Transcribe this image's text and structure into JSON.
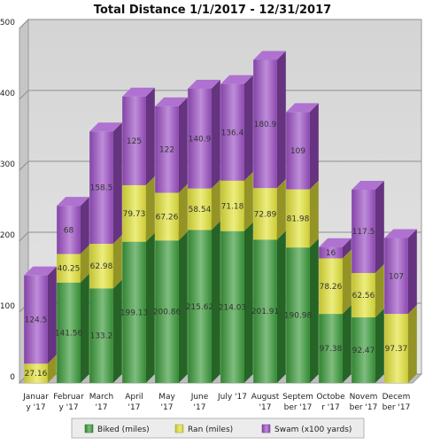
{
  "chart_data": {
    "type": "bar",
    "stacked": true,
    "title": "Total Distance 1/1/2017 - 12/31/2017",
    "categories": [
      [
        "Januar",
        "y '17"
      ],
      [
        "Februar",
        "y '17"
      ],
      [
        "March",
        "'17"
      ],
      [
        "April",
        "'17"
      ],
      [
        "May",
        "'17"
      ],
      [
        "June",
        "'17"
      ],
      [
        "July '17"
      ],
      [
        "August",
        "'17"
      ],
      [
        "Septem",
        "ber '17"
      ],
      [
        "Octobe",
        "r '17"
      ],
      [
        "Novem",
        "ber '17"
      ],
      [
        "Decem",
        "ber '17"
      ]
    ],
    "series": [
      {
        "name": "Biked (miles)",
        "color": "#3a9a3a",
        "values": [
          0,
          141.56,
          133.2,
          199.13,
          200.86,
          215.62,
          214.03,
          201.91,
          190.98,
          97.38,
          92.47,
          0
        ],
        "labels": [
          "",
          "141.56",
          "133.2",
          "199.13",
          "200.86",
          "215.62",
          "214.03",
          "201.91",
          "190.98",
          "97.38",
          "92.47",
          ""
        ]
      },
      {
        "name": "Ran (miles)",
        "color": "#e3e33a",
        "values": [
          27.16,
          40.25,
          62.98,
          79.73,
          67.26,
          58.54,
          71.18,
          72.89,
          81.98,
          78.26,
          62.56,
          97.37
        ],
        "labels": [
          "27.16",
          "40.25",
          "62.98",
          "79.73",
          "67.26",
          "58.54",
          "71.18",
          "72.89",
          "81.98",
          "78.26",
          "62.56",
          "97.37"
        ]
      },
      {
        "name": "Swam (x100 yards)",
        "color": "#9b4fc4",
        "values": [
          124.5,
          68,
          158.5,
          125,
          122,
          140.9,
          136.4,
          180.9,
          109,
          16,
          117.5,
          107
        ],
        "labels": [
          "124.5",
          "68",
          "158.5",
          "125",
          "122",
          "140.9",
          "136.4",
          "180.9",
          "109",
          "16",
          "117.5",
          "107"
        ]
      }
    ],
    "ylim": [
      0,
      500
    ],
    "yticks": [
      "0",
      "100",
      "200",
      "300",
      "400",
      "500"
    ],
    "grid": true,
    "legend": "bottom"
  }
}
